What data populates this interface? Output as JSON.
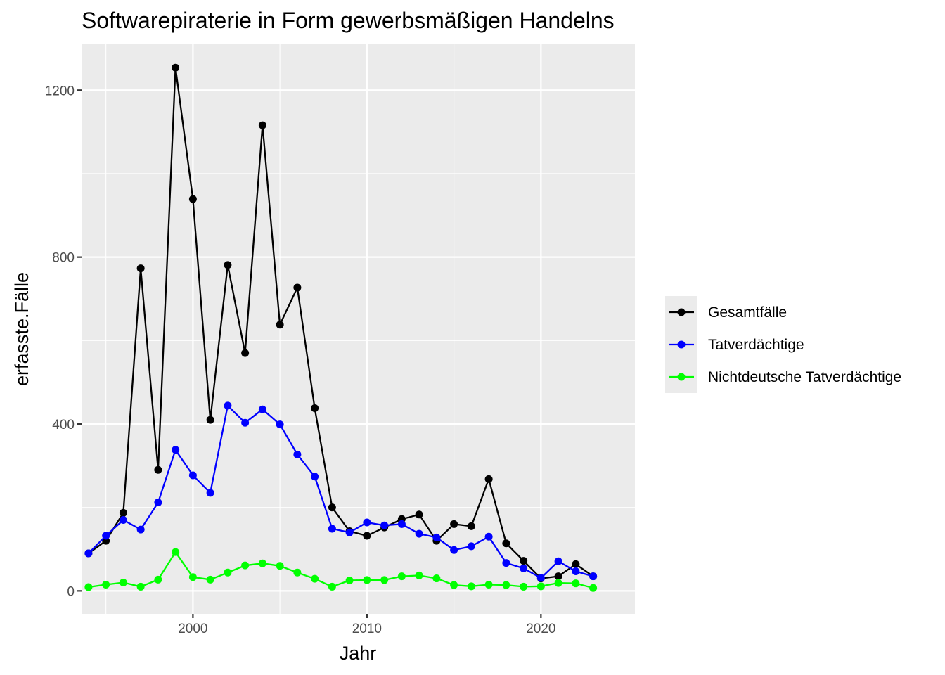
{
  "chart_data": {
    "type": "line",
    "title": "Softwarepiraterie in Form gewerbsmäßigen Handelns",
    "xlabel": "Jahr",
    "ylabel": "erfasste.Fälle",
    "xlim": [
      1993.6,
      2025.4
    ],
    "ylim": [
      -55,
      1310
    ],
    "x_ticks": [
      2000,
      2010,
      2020
    ],
    "x_minor": [
      1995,
      2005,
      2015
    ],
    "y_ticks": [
      0,
      400,
      800,
      1200
    ],
    "y_minor": [
      200,
      600,
      1000
    ],
    "grid": true,
    "legend_position": "right",
    "x": [
      1994,
      1995,
      1996,
      1997,
      1998,
      1999,
      2000,
      2001,
      2002,
      2003,
      2004,
      2005,
      2006,
      2007,
      2008,
      2009,
      2010,
      2011,
      2012,
      2013,
      2014,
      2015,
      2016,
      2017,
      2018,
      2019,
      2020,
      2021,
      2022,
      2023
    ],
    "series": [
      {
        "name": "Gesamtfälle",
        "color": "#000000",
        "values": [
          90,
          120,
          187,
          773,
          290,
          1254,
          939,
          410,
          781,
          570,
          1116,
          638,
          727,
          438,
          200,
          143,
          132,
          152,
          172,
          183,
          120,
          160,
          155,
          268,
          114,
          72,
          30,
          35,
          64,
          35
        ]
      },
      {
        "name": "Tatverdächtige",
        "color": "#0000ff",
        "values": [
          90,
          132,
          170,
          147,
          212,
          338,
          277,
          235,
          444,
          403,
          435,
          399,
          327,
          274,
          149,
          140,
          164,
          157,
          160,
          137,
          128,
          98,
          107,
          130,
          67,
          54,
          31,
          71,
          47,
          35
        ]
      },
      {
        "name": "Nichtdeutsche Tatverdächtige",
        "color": "#00ff00",
        "values": [
          9,
          15,
          20,
          10,
          27,
          93,
          33,
          27,
          44,
          61,
          66,
          60,
          44,
          29,
          10,
          25,
          26,
          26,
          35,
          37,
          30,
          14,
          11,
          15,
          14,
          10,
          11,
          19,
          18,
          7
        ]
      }
    ]
  }
}
